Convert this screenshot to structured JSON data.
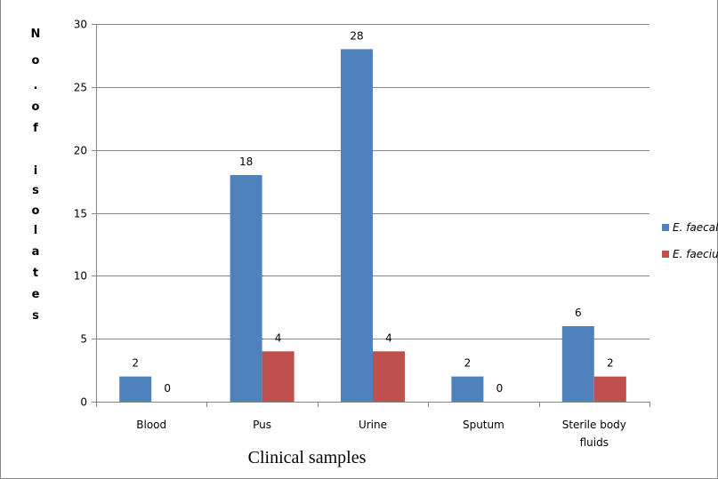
{
  "chart_data": {
    "type": "bar",
    "categories": [
      [
        "Blood"
      ],
      [
        "Pus"
      ],
      [
        "Urine"
      ],
      [
        "Sputum"
      ],
      [
        "Sterile body",
        "fluids"
      ]
    ],
    "series": [
      {
        "name": "E. faecalis",
        "values": [
          2,
          18,
          28,
          2,
          6
        ],
        "color": "#4f81bd"
      },
      {
        "name": "E. faecium",
        "values": [
          0,
          4,
          4,
          0,
          2
        ],
        "color": "#c0504d"
      }
    ],
    "ylim": [
      0,
      30
    ],
    "yticks": [
      0,
      5,
      10,
      15,
      20,
      25,
      30
    ],
    "ylabel_chars": [
      "N",
      "o",
      ".",
      "o",
      "f",
      "",
      "i",
      "s",
      "o",
      "l",
      "a",
      "t",
      "e",
      "s"
    ],
    "xlabel": "Clinical samples",
    "grid": true,
    "legend_position": "right"
  }
}
